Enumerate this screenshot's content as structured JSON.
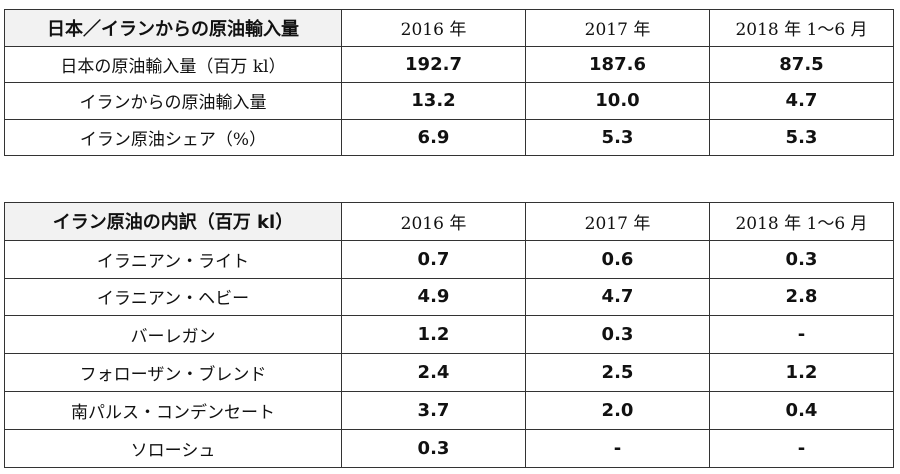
{
  "table1": {
    "title": "日本／イランからの原油輸入量",
    "columns": [
      "2016 年",
      "2017 年",
      "2018 年 1～6 月"
    ],
    "rows": [
      {
        "label": "日本の原油輸入量（百万 kl）",
        "values": [
          "192.7",
          "187.6",
          "87.5"
        ]
      },
      {
        "label": "イランからの原油輸入量",
        "values": [
          "13.2",
          "10.0",
          "4.7"
        ]
      },
      {
        "label": "イラン原油シェア（%）",
        "values": [
          "6.9",
          "5.3",
          "5.3"
        ]
      }
    ]
  },
  "table2": {
    "title": "イラン原油の内訳（百万 kl）",
    "columns": [
      "2016 年",
      "2017 年",
      "2018 年 1～6 月"
    ],
    "rows": [
      {
        "label": "イラニアン・ライト",
        "values": [
          "0.7",
          "0.6",
          "0.3"
        ]
      },
      {
        "label": "イラニアン・ヘビー",
        "values": [
          "4.9",
          "4.7",
          "2.8"
        ]
      },
      {
        "label": "バーレガン",
        "values": [
          "1.2",
          "0.3",
          "-"
        ]
      },
      {
        "label": "フォローザン・ブレンド",
        "values": [
          "2.4",
          "2.5",
          "1.2"
        ]
      },
      {
        "label": "南パルス・コンデンセート",
        "values": [
          "3.7",
          "2.0",
          "0.4"
        ]
      },
      {
        "label": "ソローシュ",
        "values": [
          "0.3",
          "-",
          "-"
        ]
      }
    ]
  }
}
